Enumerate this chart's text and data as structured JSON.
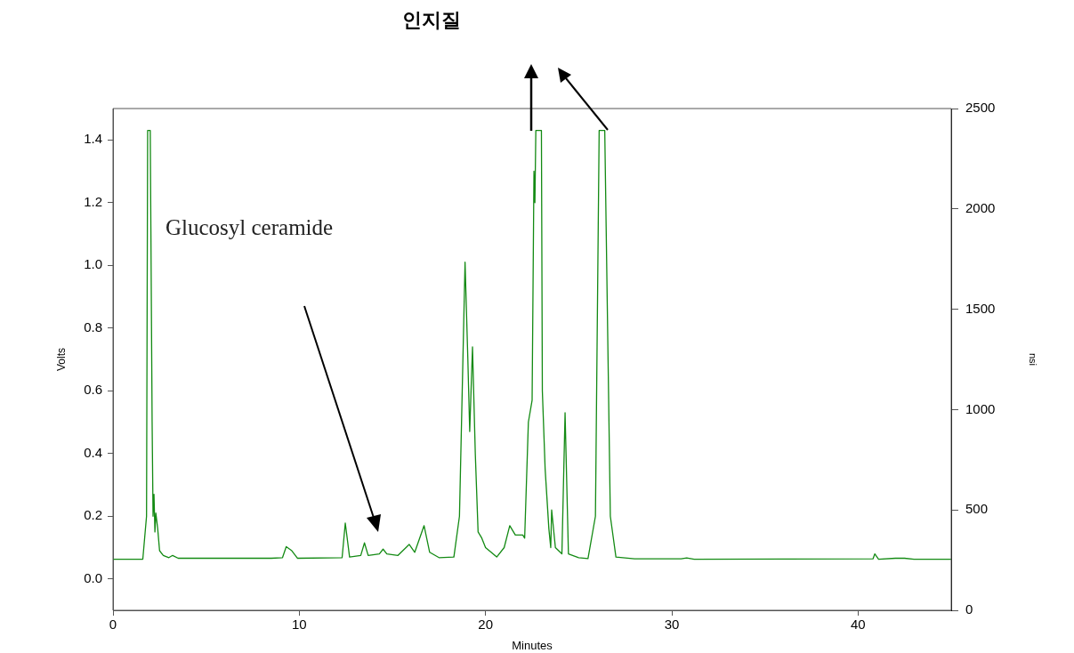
{
  "chart_data": {
    "type": "line",
    "title": "인지질",
    "xlabel": "Minutes",
    "ylabel": "Volts",
    "y2label": "nsi",
    "annotations": [
      "Glucosyl ceramide"
    ],
    "series": [
      {
        "color": "#138a13",
        "x": [
          0,
          1.6,
          1.8,
          1.86,
          2.0,
          2.1,
          2.15,
          2.2,
          2.25,
          2.3,
          2.4,
          2.5,
          2.7,
          3.0,
          3.2,
          3.5,
          8.5,
          9.1,
          9.3,
          9.6,
          9.9,
          12.3,
          12.47,
          12.7,
          13.3,
          13.5,
          13.7,
          14.3,
          14.5,
          14.7,
          15.3,
          15.9,
          16.2,
          16.7,
          17.0,
          17.5,
          18.3,
          18.6,
          18.9,
          19.05,
          19.15,
          19.3,
          19.45,
          19.6,
          19.8,
          20.0,
          20.6,
          21.0,
          21.3,
          21.6,
          22.0,
          22.1,
          22.3,
          22.5,
          22.6,
          22.65,
          22.7,
          23.0,
          23.05,
          23.2,
          23.4,
          23.5,
          23.55,
          23.75,
          24.1,
          24.27,
          24.45,
          25.0,
          25.5,
          25.9,
          26.1,
          26.4,
          26.7,
          27.0,
          28,
          30.5,
          30.8,
          31.2,
          40.8,
          40.9,
          41.1,
          42.0,
          42.5,
          43,
          45
        ],
        "values": [
          0.063,
          0.063,
          0.2,
          1.43,
          1.43,
          0.5,
          0.2,
          0.27,
          0.15,
          0.21,
          0.16,
          0.09,
          0.075,
          0.068,
          0.075,
          0.066,
          0.066,
          0.068,
          0.103,
          0.09,
          0.066,
          0.068,
          0.178,
          0.07,
          0.075,
          0.115,
          0.075,
          0.08,
          0.095,
          0.08,
          0.075,
          0.11,
          0.085,
          0.17,
          0.085,
          0.068,
          0.07,
          0.2,
          1.01,
          0.7,
          0.47,
          0.74,
          0.4,
          0.15,
          0.13,
          0.1,
          0.07,
          0.1,
          0.17,
          0.14,
          0.14,
          0.13,
          0.5,
          0.57,
          1.3,
          1.2,
          1.43,
          1.43,
          0.6,
          0.35,
          0.16,
          0.1,
          0.22,
          0.1,
          0.08,
          0.53,
          0.08,
          0.068,
          0.065,
          0.2,
          1.43,
          1.43,
          0.2,
          0.07,
          0.064,
          0.064,
          0.067,
          0.063,
          0.064,
          0.08,
          0.063,
          0.066,
          0.066,
          0.063,
          0.063
        ]
      }
    ],
    "xlim": [
      0,
      45
    ],
    "xticks": [
      0,
      10,
      20,
      30,
      40
    ],
    "ylim": [
      -0.1,
      1.5
    ],
    "yticks": [
      {
        "value": 0,
        "label": "0.0"
      },
      0.2,
      0.4,
      0.6,
      0.8,
      {
        "value": 1,
        "label": "1.0"
      },
      1.2,
      1.4
    ],
    "y2lim": [
      0,
      2500
    ],
    "y2ticks": [
      0,
      500,
      1000,
      1500,
      2000,
      2500
    ],
    "grid": false,
    "legend": false,
    "marker": "none",
    "line_style": "solid"
  }
}
